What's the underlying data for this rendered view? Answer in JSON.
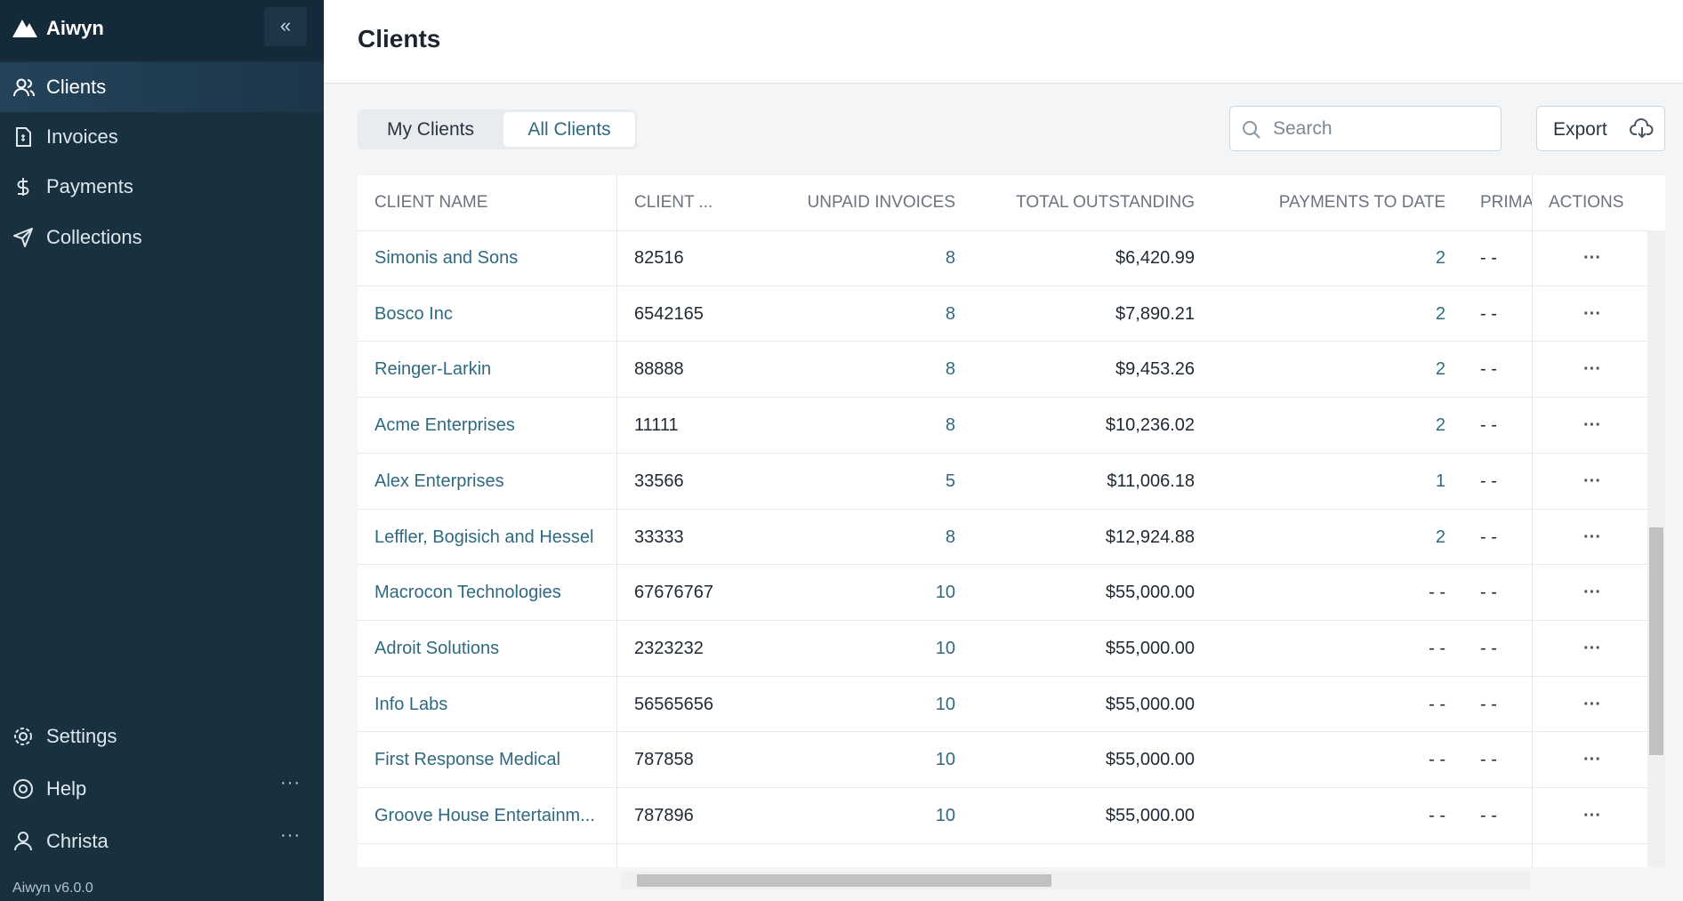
{
  "sidebar": {
    "brand": "Aiwyn",
    "nav": [
      "Clients",
      "Invoices",
      "Payments",
      "Collections"
    ],
    "bottom": [
      "Settings",
      "Help",
      "Christa"
    ],
    "version": "Aiwyn v6.0.0"
  },
  "header": {
    "title": "Clients"
  },
  "tabs": [
    "My Clients",
    "All Clients"
  ],
  "search_placeholder": "Search",
  "export": "Export",
  "table": {
    "columns": [
      "CLIENT NAME",
      "CLIENT ...",
      "UNPAID INVOICES",
      "TOTAL OUTSTANDING",
      "PAYMENTS TO DATE",
      "PRIMA",
      "ACTIONS"
    ],
    "rows": [
      [
        "Simonis and Sons",
        "82516",
        "8",
        "$6,420.99",
        "2",
        "- -"
      ],
      [
        "Bosco Inc",
        "6542165",
        "8",
        "$7,890.21",
        "2",
        "- -"
      ],
      [
        "Reinger-Larkin",
        "88888",
        "8",
        "$9,453.26",
        "2",
        "- -"
      ],
      [
        "Acme Enterprises",
        "11111",
        "8",
        "$10,236.02",
        "2",
        "- -"
      ],
      [
        "Alex Enterprises",
        "33566",
        "5",
        "$11,006.18",
        "1",
        "- -"
      ],
      [
        "Leffler, Bogisich and Hessel",
        "33333",
        "8",
        "$12,924.88",
        "2",
        "- -"
      ],
      [
        "Macrocon Technologies",
        "67676767",
        "10",
        "$55,000.00",
        "- -",
        "- -"
      ],
      [
        "Adroit Solutions",
        "2323232",
        "10",
        "$55,000.00",
        "- -",
        "- -"
      ],
      [
        "Info Labs",
        "56565656",
        "10",
        "$55,000.00",
        "- -",
        "- -"
      ],
      [
        "First Response Medical",
        "787858",
        "10",
        "$55,000.00",
        "- -",
        "- -"
      ],
      [
        "Groove House Entertainm...",
        "787896",
        "10",
        "$55,000.00",
        "- -",
        "- -"
      ]
    ]
  }
}
